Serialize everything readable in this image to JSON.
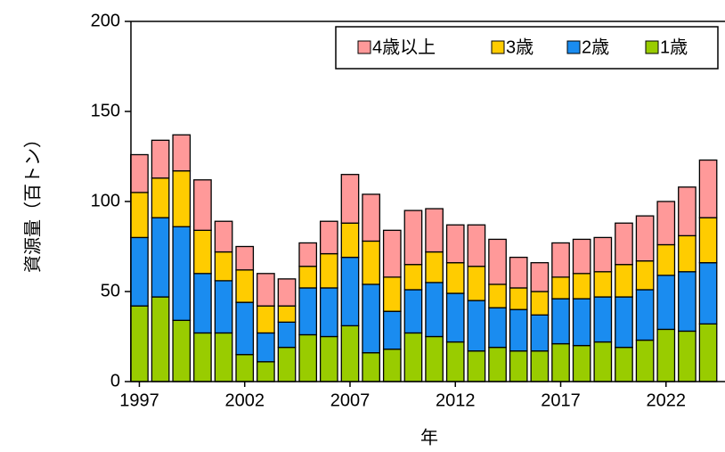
{
  "chart_data": {
    "type": "stacked_bar",
    "x_label": "年",
    "y_label": "資源量（百トン）",
    "x": [
      1997,
      1998,
      1999,
      2000,
      2001,
      2002,
      2003,
      2004,
      2005,
      2006,
      2007,
      2008,
      2009,
      2010,
      2011,
      2012,
      2013,
      2014,
      2015,
      2016,
      2017,
      2018,
      2019,
      2020,
      2021,
      2022,
      2023,
      2024
    ],
    "xlim": [
      1996.6,
      2024.8
    ],
    "xticks": [
      1997,
      2002,
      2007,
      2012,
      2017,
      2022
    ],
    "ylim": [
      0,
      200
    ],
    "yticks": [
      0,
      50,
      100,
      150,
      200
    ],
    "legend": "top-right",
    "series": [
      {
        "name": "1歳",
        "color": "#99cc00",
        "values": [
          42,
          47,
          34,
          27,
          27,
          15,
          11,
          19,
          26,
          25,
          31,
          16,
          18,
          27,
          25,
          22,
          17,
          19,
          17,
          17,
          21,
          20,
          22,
          19,
          23,
          29,
          28,
          32
        ]
      },
      {
        "name": "2歳",
        "color": "#1a8cf0",
        "values": [
          38,
          44,
          52,
          33,
          29,
          29,
          16,
          14,
          26,
          27,
          38,
          38,
          21,
          24,
          30,
          27,
          28,
          22,
          23,
          20,
          25,
          26,
          25,
          28,
          28,
          30,
          33,
          34
        ]
      },
      {
        "name": "3歳",
        "color": "#ffcc00",
        "values": [
          25,
          22,
          31,
          24,
          16,
          18,
          15,
          9,
          12,
          19,
          19,
          24,
          19,
          14,
          17,
          17,
          19,
          13,
          12,
          13,
          12,
          14,
          14,
          18,
          16,
          17,
          20,
          25
        ]
      },
      {
        "name": "4歳以上",
        "color": "#ff9999",
        "values": [
          21,
          21,
          20,
          28,
          17,
          13,
          18,
          15,
          13,
          18,
          27,
          26,
          26,
          30,
          24,
          21,
          23,
          25,
          17,
          16,
          19,
          19,
          19,
          23,
          25,
          24,
          27,
          32
        ]
      }
    ]
  }
}
